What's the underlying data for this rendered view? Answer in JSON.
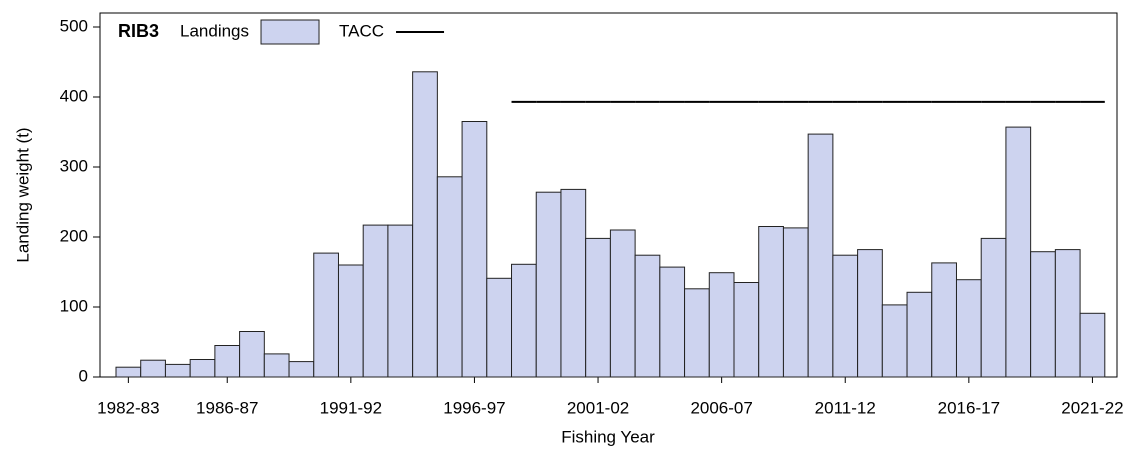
{
  "chart_data": {
    "type": "bar",
    "title": "RIB3",
    "x_label": "Fishing Year",
    "y_label": "Landing weight (t)",
    "categories": [
      "1982-83",
      null,
      null,
      null,
      "1986-87",
      null,
      null,
      null,
      null,
      "1991-92",
      null,
      null,
      null,
      null,
      "1996-97",
      null,
      null,
      null,
      null,
      "2001-02",
      null,
      null,
      null,
      null,
      "2006-07",
      null,
      null,
      null,
      null,
      "2011-12",
      null,
      null,
      null,
      null,
      "2016-17",
      null,
      null,
      null,
      null,
      "2021-22"
    ],
    "series": [
      {
        "name": "Landings",
        "type": "bar",
        "color": "#cdd3ef",
        "values": [
          14,
          24,
          18,
          25,
          45,
          65,
          33,
          22,
          177,
          160,
          217,
          217,
          436,
          286,
          365,
          141,
          161,
          264,
          268,
          198,
          210,
          174,
          157,
          126,
          149,
          135,
          215,
          213,
          347,
          174,
          182,
          103,
          121,
          163,
          139,
          198,
          357,
          179,
          182,
          91
        ]
      },
      {
        "name": "TACC",
        "type": "step",
        "color": "#000000",
        "values": [
          null,
          null,
          null,
          null,
          null,
          null,
          null,
          null,
          null,
          null,
          null,
          null,
          null,
          null,
          null,
          null,
          393,
          393,
          393,
          393,
          393,
          393,
          393,
          393,
          393,
          393,
          393,
          393,
          393,
          393,
          393,
          393,
          393,
          393,
          393,
          393,
          393,
          393,
          393,
          393
        ]
      }
    ],
    "ylim": [
      0,
      520
    ],
    "yticks": [
      0,
      100,
      200,
      300,
      400,
      500
    ]
  }
}
